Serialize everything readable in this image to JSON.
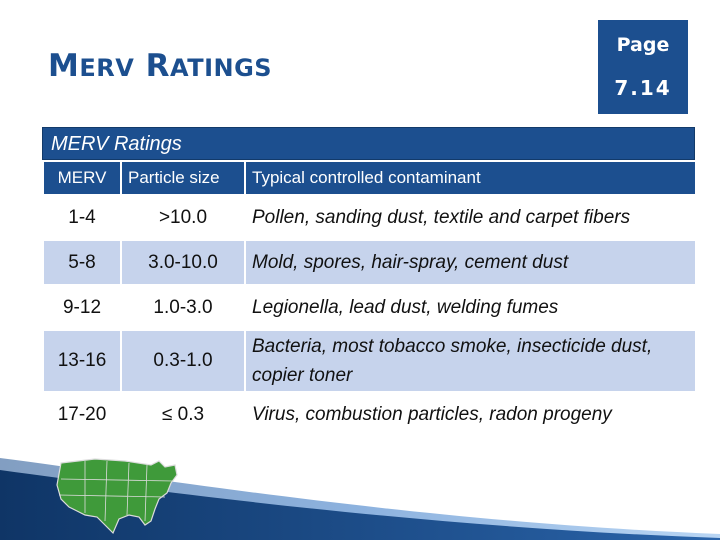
{
  "title": {
    "first_cap": "M",
    "first_rest": "ERV",
    "second_cap": "R",
    "second_rest": "ATINGS"
  },
  "page_badge": {
    "label": "Page",
    "number": "7.14"
  },
  "table": {
    "caption": "MERV Ratings",
    "headers": [
      "MERV",
      "Particle size",
      "Typical controlled contaminant"
    ],
    "rows": [
      {
        "merv": "1-4",
        "size": ">10.0",
        "contaminant": "Pollen, sanding dust, textile and carpet fibers"
      },
      {
        "merv": "5-8",
        "size": "3.0-10.0",
        "contaminant": "Mold, spores, hair-spray, cement dust"
      },
      {
        "merv": "9-12",
        "size": "1.0-3.0",
        "contaminant": "Legionella, lead dust, welding fumes"
      },
      {
        "merv": "13-16",
        "size": "0.3-1.0",
        "contaminant": "Bacteria, most tobacco smoke, insecticide dust, copier toner"
      },
      {
        "merv": "17-20",
        "size": "≤ 0.3",
        "contaminant": "Virus, combustion particles,  radon progeny"
      }
    ]
  },
  "colors": {
    "primary": "#1c4f8f",
    "row_alt": "#c6d3ec",
    "map_green": "#3f9a3a"
  }
}
